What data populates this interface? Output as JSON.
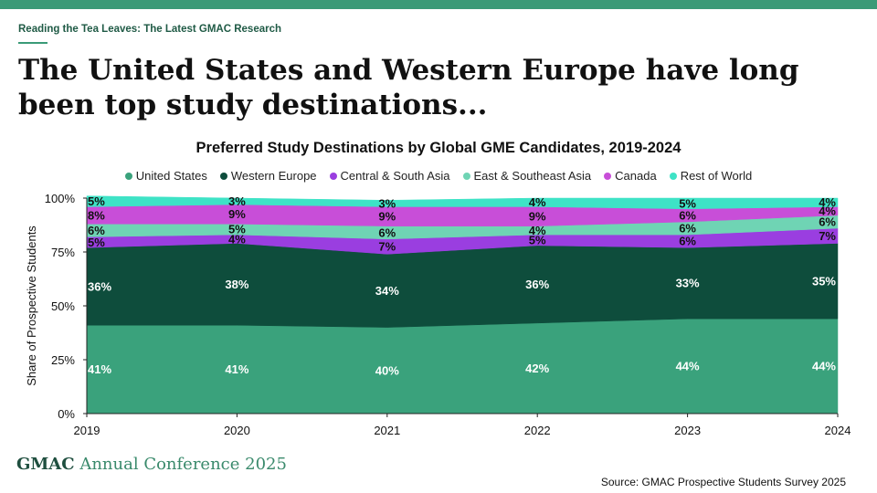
{
  "header": {
    "eyebrow": "Reading the Tea Leaves: The Latest GMAC Research",
    "headline": "The United States and Western Europe have long been top study destinations..."
  },
  "footer": {
    "brand_bold": "GMAC",
    "brand_rest": "Annual Conference 2025",
    "source": "Source: GMAC Prospective Students Survey 2025"
  },
  "colors": {
    "accent": "#3a9a77",
    "label_light": "#ffffff",
    "label_dark": "#111111"
  },
  "chart_data": {
    "type": "area",
    "stacked": true,
    "title": "Preferred Study Destinations by Global GME Candidates, 2019-2024",
    "xlabel": "",
    "ylabel": "Share of Prospective Students",
    "x": [
      "2019",
      "2020",
      "2021",
      "2022",
      "2023",
      "2024"
    ],
    "ylim": [
      0,
      100
    ],
    "yticks": [
      "0%",
      "25%",
      "50%",
      "75%",
      "100%"
    ],
    "grid": false,
    "legend": "top",
    "series": [
      {
        "name": "United States",
        "color": "#3aa27c",
        "values": [
          41,
          41,
          40,
          42,
          44,
          44
        ],
        "labels": [
          "41%",
          "41%",
          "40%",
          "42%",
          "44%",
          "44%"
        ]
      },
      {
        "name": "Western Europe",
        "color": "#0e4d3c",
        "values": [
          36,
          38,
          34,
          36,
          33,
          35
        ],
        "labels": [
          "36%",
          "38%",
          "34%",
          "36%",
          "33%",
          "35%"
        ]
      },
      {
        "name": "Central & South Asia",
        "color": "#9a3ee0",
        "values": [
          5,
          4,
          7,
          5,
          6,
          7
        ],
        "labels": [
          "5%",
          "4%",
          "7%",
          "5%",
          "6%",
          "7%"
        ]
      },
      {
        "name": "East & Southeast Asia",
        "color": "#6fd4b4",
        "values": [
          6,
          5,
          6,
          4,
          6,
          6
        ],
        "labels": [
          "6%",
          "5%",
          "6%",
          "4%",
          "6%",
          "6%"
        ]
      },
      {
        "name": "Canada",
        "color": "#c84ed8",
        "values": [
          8,
          9,
          9,
          9,
          6,
          4
        ],
        "labels": [
          "8%",
          "9%",
          "9%",
          "9%",
          "6%",
          "4%"
        ]
      },
      {
        "name": "Rest of World",
        "color": "#3ee3c6",
        "values": [
          5,
          3,
          3,
          4,
          5,
          4
        ],
        "labels": [
          "5%",
          "3%",
          "3%",
          "4%",
          "5%",
          "4%"
        ]
      }
    ]
  }
}
